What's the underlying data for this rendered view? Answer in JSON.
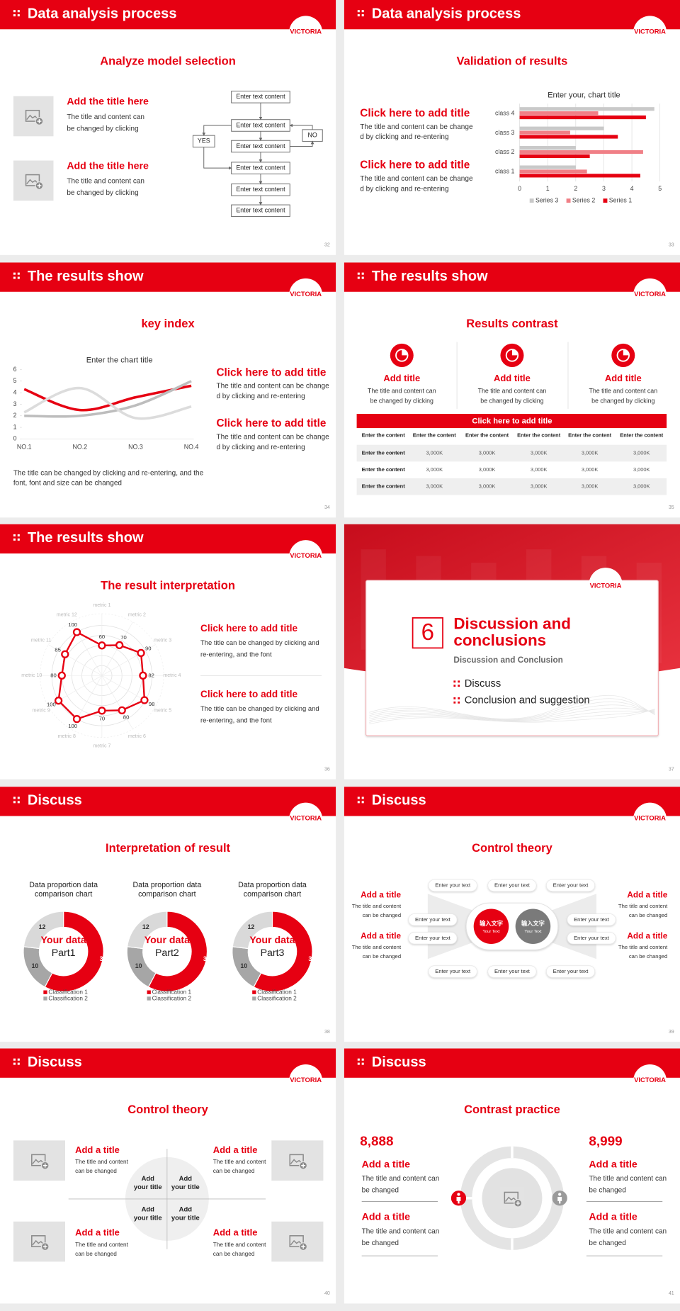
{
  "logo": "VICTORIA",
  "slides": [
    {
      "header": "Data analysis process",
      "title": "Analyze model selection",
      "page": "32",
      "items": [
        {
          "title": "Add the title here",
          "text": [
            "The title and content can",
            "be changed by clicking"
          ]
        },
        {
          "title": "Add the title here",
          "text": [
            "The title and content can",
            "be changed by clicking"
          ]
        }
      ],
      "flow": {
        "boxes": [
          "Enter text content",
          "Enter text content",
          "Enter text content",
          "Enter text content",
          "Enter text content",
          "Enter text content"
        ],
        "yes": "YES",
        "no": "NO"
      }
    },
    {
      "header": "Data analysis process",
      "title": "Validation of results",
      "page": "33",
      "items": [
        {
          "title": "Click here to add title",
          "text": [
            "The title and content can be change",
            "d by clicking and re-entering"
          ]
        },
        {
          "title": "Click here to add title",
          "text": [
            "The title and content can be change",
            "d by clicking and re-entering"
          ]
        }
      ],
      "chart": {
        "type": "bar",
        "title": "Enter your, chart title",
        "categories": [
          "class 1",
          "class 2",
          "class 3",
          "class 4"
        ],
        "series": [
          {
            "name": "Series 3",
            "color": "#c9c9c9",
            "values": [
              2,
              2,
              3,
              4.8
            ]
          },
          {
            "name": "Series 2",
            "color": "#f07f86",
            "values": [
              2.4,
              4.4,
              1.8,
              2.8
            ]
          },
          {
            "name": "Series 1",
            "color": "#e60012",
            "values": [
              4.3,
              2.5,
              3.5,
              4.5
            ]
          }
        ],
        "xlim": [
          0,
          5
        ],
        "xticks": [
          0,
          1,
          2,
          3,
          4,
          5
        ],
        "grid": true,
        "legend": "bottom"
      }
    },
    {
      "header": "The results show",
      "title": "key index",
      "page": "34",
      "chart": {
        "type": "line",
        "title": "Enter the chart title",
        "categories": [
          "NO.1",
          "NO.2",
          "NO.3",
          "NO.4"
        ],
        "series": [
          {
            "color": "#e60012",
            "values": [
              4.3,
              2.5,
              3.6,
              4.6
            ]
          },
          {
            "color": "#bdbdbd",
            "values": [
              2,
              2,
              2.9,
              5
            ]
          },
          {
            "color": "#dcdcdc",
            "values": [
              2.3,
              4.4,
              1.8,
              2.8
            ]
          }
        ],
        "ylim": [
          0,
          6
        ],
        "yticks": [
          0,
          1,
          2,
          3,
          4,
          5,
          6
        ],
        "smooth": true
      },
      "items": [
        {
          "title": "Click here to add title",
          "text": [
            "The title and content can be change",
            "d by clicking and re-entering"
          ]
        },
        {
          "title": "Click here to add title",
          "text": [
            "The title and content can be change",
            "d by clicking and re-entering"
          ]
        }
      ],
      "note": [
        "The title can be changed by clicking and re-entering, and the",
        "font, font and size can be changed"
      ]
    },
    {
      "header": "The results show",
      "title": "Results contrast",
      "page": "35",
      "items": [
        {
          "title": "Add title",
          "text": [
            "The title and content can",
            "be changed by clicking"
          ]
        },
        {
          "title": "Add title",
          "text": [
            "The title and content can",
            "be changed by clicking"
          ]
        },
        {
          "title": "Add title",
          "text": [
            "The title and content can",
            "be changed by clicking"
          ]
        }
      ],
      "banner": "Click here to add title",
      "table": {
        "header": [
          "Enter the content",
          "Enter the content",
          "Enter the content",
          "Enter the content",
          "Enter the content",
          "Enter the content"
        ],
        "rows": [
          [
            "Enter the content",
            "3,000K",
            "3,000K",
            "3,000K",
            "3,000K",
            "3,000K"
          ],
          [
            "Enter the content",
            "3,000K",
            "3,000K",
            "3,000K",
            "3,000K",
            "3,000K"
          ],
          [
            "Enter the content",
            "3,000K",
            "3,000K",
            "3,000K",
            "3,000K",
            "3,000K"
          ]
        ]
      }
    },
    {
      "header": "The results show",
      "title": "The result interpretation",
      "page": "36",
      "chart": {
        "type": "radar",
        "categories": [
          "metric 1",
          "metric 2",
          "metric 3",
          "metric 4",
          "metric 5",
          "metric 6",
          "metric 7",
          "metric 8",
          "metric 9",
          "metric 10",
          "metric 11",
          "metric 12"
        ],
        "values": [
          60,
          70,
          90,
          82,
          98,
          80,
          70,
          100,
          100,
          80,
          85,
          100
        ],
        "color": "#e60012",
        "rlim": [
          0,
          100
        ]
      },
      "items": [
        {
          "title": "Click here to add  title",
          "text": [
            "The title can be changed by clicking and",
            "re-entering, and the font"
          ]
        },
        {
          "title": "Click here to add  title",
          "text": [
            "The title can be changed by clicking and",
            "re-entering, and the font"
          ]
        }
      ]
    },
    {
      "page": "37",
      "number": "6",
      "section_title": [
        "Discussion and",
        "conclusions"
      ],
      "subtitle": "Discussion and Conclusion",
      "bullets": [
        "Discuss",
        "Conclusion and suggestion"
      ]
    },
    {
      "header": "Discuss",
      "title": "Interpretation of result",
      "page": "38",
      "charts": [
        {
          "type": "donut",
          "title": [
            "Data proportion data",
            "comparison chart"
          ],
          "center": [
            "Your data",
            "Part1"
          ],
          "categories": [
            "Classification 1",
            "Classification 2",
            null
          ],
          "values": [
            30,
            10,
            12
          ],
          "colors": [
            "#e60012",
            "#a6a6a6",
            "#d9d9d9"
          ]
        },
        {
          "type": "donut",
          "title": [
            "Data proportion data",
            "comparison chart"
          ],
          "center": [
            "Your data",
            "Part2"
          ],
          "categories": [
            "Classification 1",
            "Classification 2",
            null
          ],
          "values": [
            30,
            10,
            12
          ],
          "colors": [
            "#e60012",
            "#a6a6a6",
            "#d9d9d9"
          ]
        },
        {
          "type": "donut",
          "title": [
            "Data proportion data",
            "comparison chart"
          ],
          "center": [
            "Your data",
            "Part3"
          ],
          "categories": [
            "Classification 1",
            "Classification 2",
            null
          ],
          "values": [
            30,
            10,
            12
          ],
          "colors": [
            "#e60012",
            "#a6a6a6",
            "#d9d9d9"
          ]
        }
      ]
    },
    {
      "header": "Discuss",
      "title": "Control theory",
      "page": "39",
      "hubs": [
        {
          "label": "输入文字",
          "sub": "Your Text"
        },
        {
          "label": "输入文字",
          "sub": "Your Text"
        }
      ],
      "pills": [
        "Enter your text",
        "Enter your text",
        "Enter your text",
        "Enter your text",
        "Enter your text",
        "Enter your text",
        "Enter your text",
        "Enter your text",
        "Enter your text",
        "Enter your text"
      ],
      "items": [
        {
          "title": "Add a title",
          "text": [
            "The title and content",
            "can be changed"
          ]
        },
        {
          "title": "Add a title",
          "text": [
            "The title and content",
            "can be changed"
          ]
        },
        {
          "title": "Add a title",
          "text": [
            "The title and content",
            "can be changed"
          ]
        },
        {
          "title": "Add a title",
          "text": [
            "The title and content",
            "can be changed"
          ]
        }
      ]
    },
    {
      "header": "Discuss",
      "title": "Control theory",
      "page": "40",
      "items": [
        {
          "title": "Add a title",
          "text": [
            "The title and content",
            "can be changed"
          ]
        },
        {
          "title": "Add a title",
          "text": [
            "The title and content",
            "can be changed"
          ]
        },
        {
          "title": "Add a title",
          "text": [
            "The title and content",
            "can be changed"
          ]
        },
        {
          "title": "Add a title",
          "text": [
            "The title and content",
            "can be changed"
          ]
        }
      ],
      "quadrants": [
        [
          "Add",
          "your title"
        ],
        [
          "Add",
          "your title"
        ],
        [
          "Add",
          "your title"
        ],
        [
          "Add",
          "your title"
        ]
      ]
    },
    {
      "header": "Discuss",
      "title": "Contrast practice",
      "page": "41",
      "figures": [
        "8,888",
        "8,999"
      ],
      "items": [
        {
          "title": "Add a title",
          "text": [
            "The title and content can",
            "be changed"
          ]
        },
        {
          "title": "Add a title",
          "text": [
            "The title and content can",
            "be changed"
          ]
        },
        {
          "title": "Add a title",
          "text": [
            "The title and content can",
            "be changed"
          ]
        },
        {
          "title": "Add a title",
          "text": [
            "The title and content can",
            "be changed"
          ]
        }
      ]
    }
  ]
}
